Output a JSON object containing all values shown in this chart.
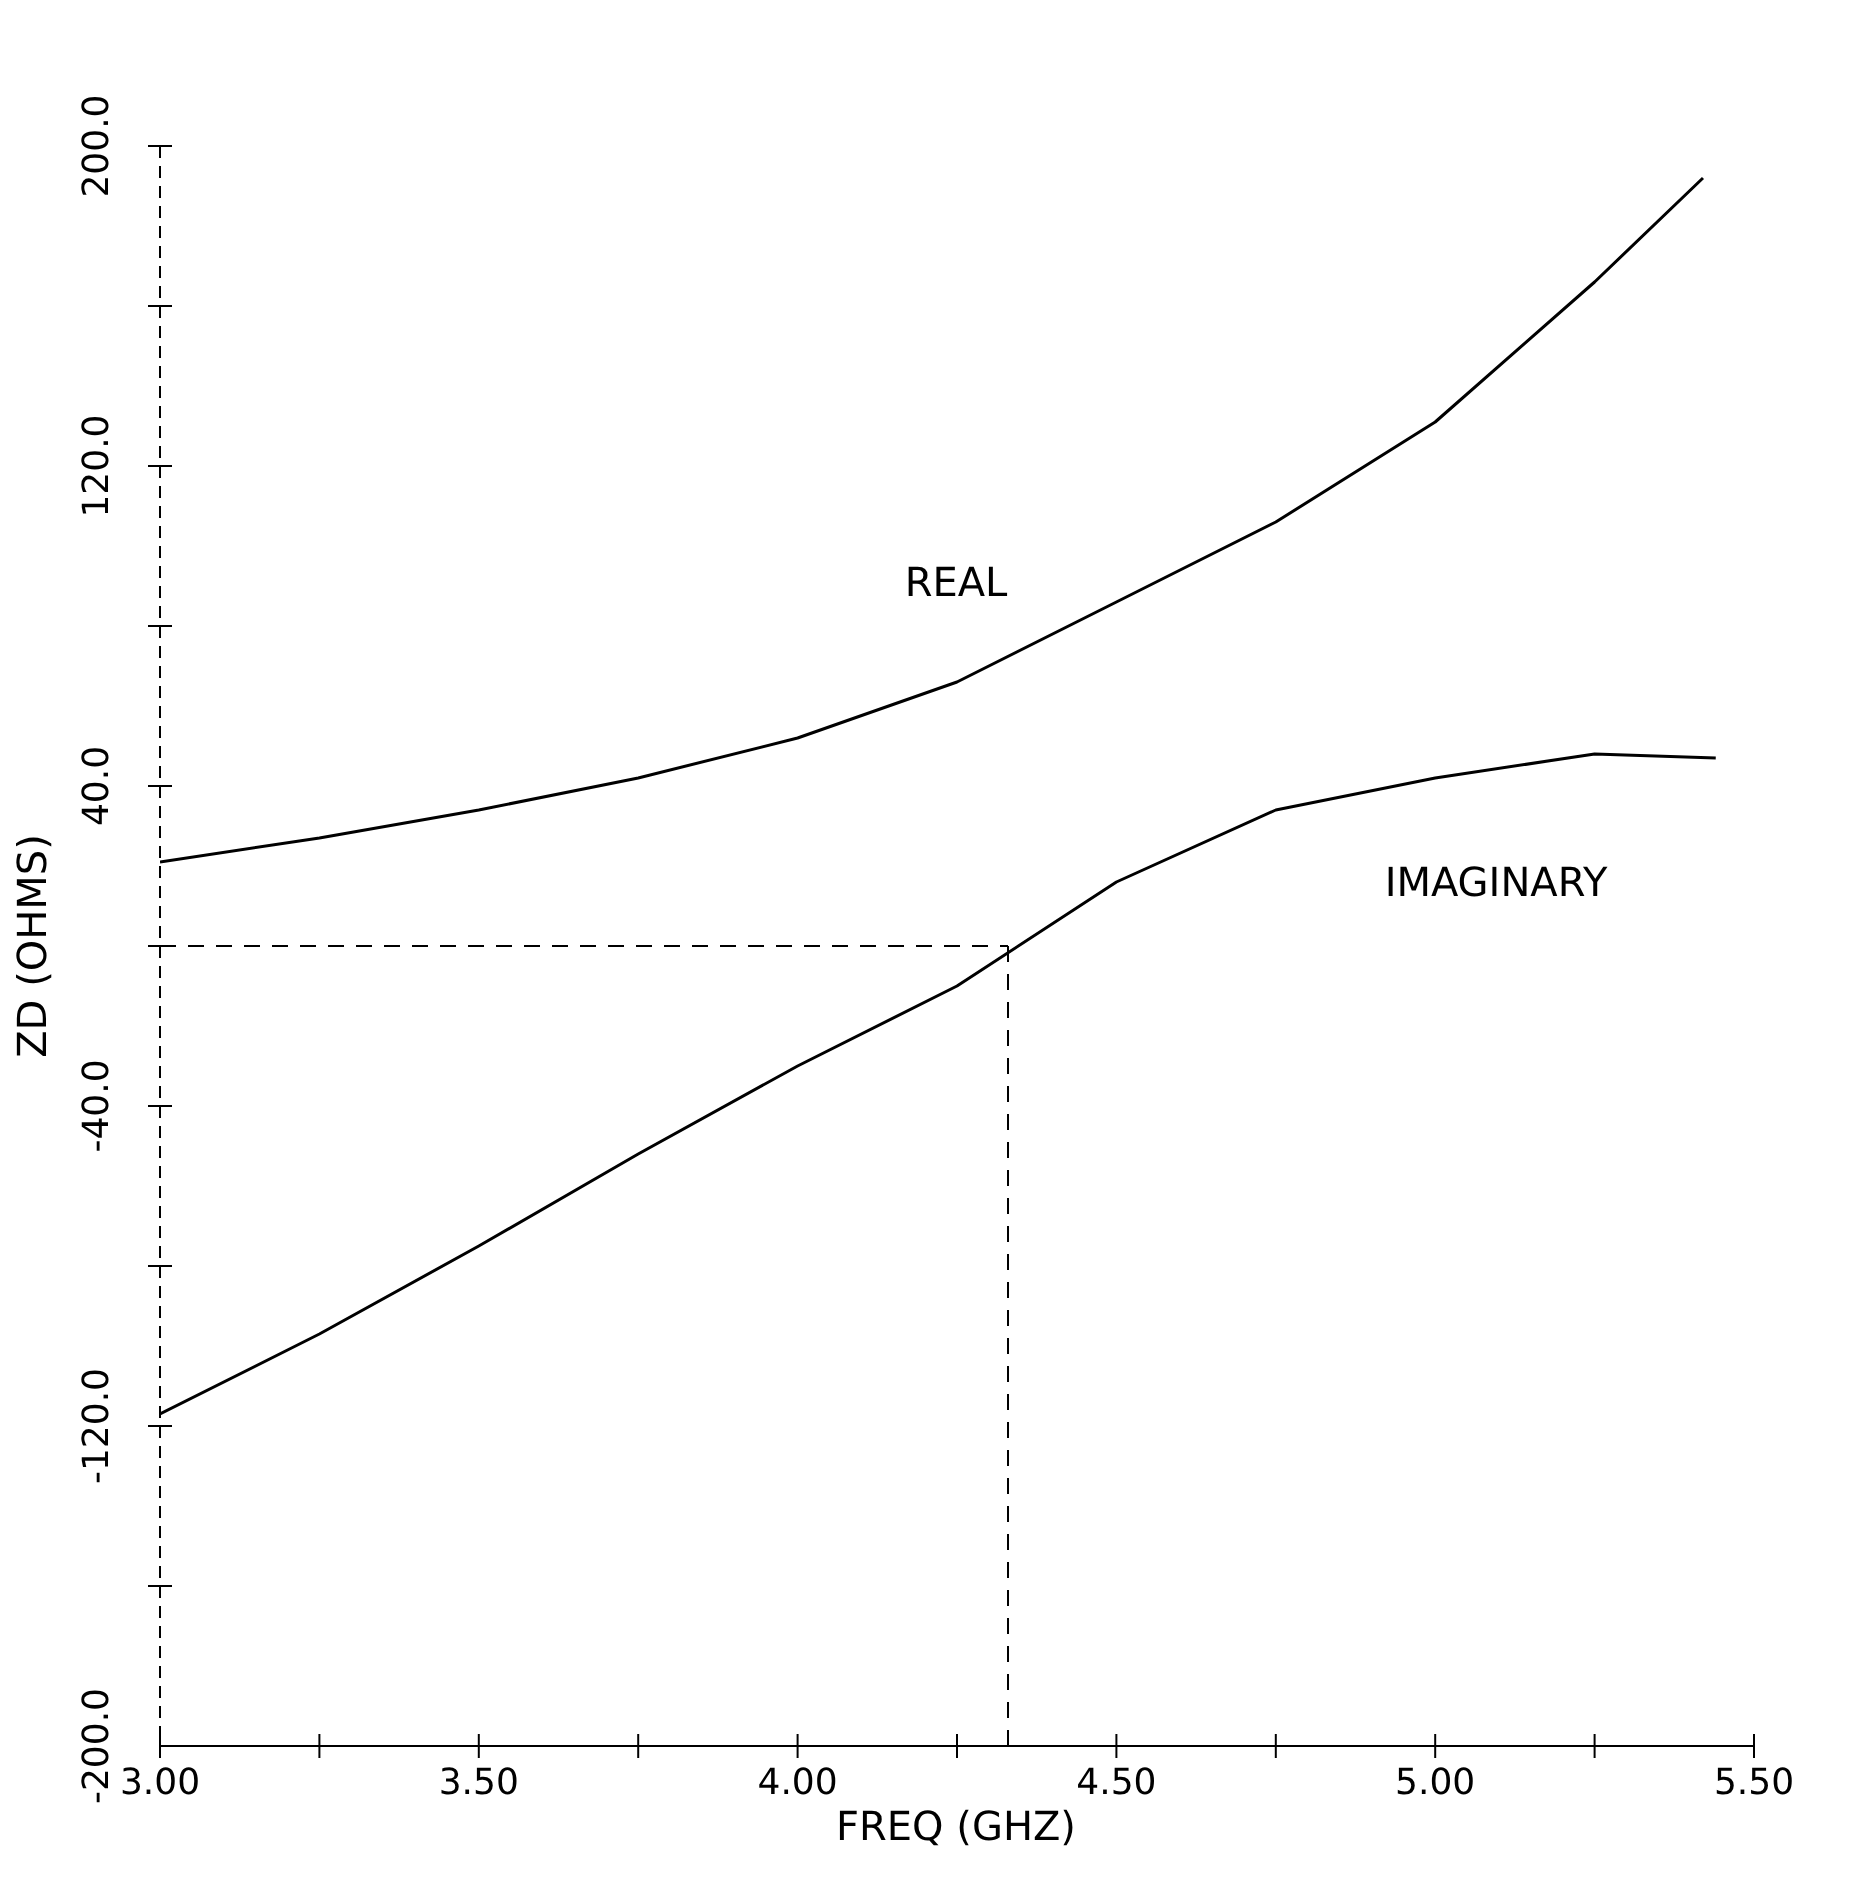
{
  "chart_data": {
    "type": "line",
    "xlabel": "FREQ (GHZ)",
    "ylabel": "ZD (OHMS)",
    "xlim": [
      3.0,
      5.5
    ],
    "xticks": [
      {
        "value": 3.0,
        "label": "3.00"
      },
      {
        "value": 3.25,
        "label": null
      },
      {
        "value": 3.5,
        "label": "3.50"
      },
      {
        "value": 3.75,
        "label": null
      },
      {
        "value": 4.0,
        "label": "4.00"
      },
      {
        "value": 4.25,
        "label": null
      },
      {
        "value": 4.5,
        "label": "4.50"
      },
      {
        "value": 4.75,
        "label": null
      },
      {
        "value": 5.0,
        "label": "5.00"
      },
      {
        "value": 5.25,
        "label": null
      },
      {
        "value": 5.5,
        "label": "5.50"
      }
    ],
    "ylim": [
      -200,
      200
    ],
    "yticks": [
      {
        "value": -200,
        "label": "-200.0"
      },
      {
        "value": -160,
        "label": null
      },
      {
        "value": -120,
        "label": "-120.0"
      },
      {
        "value": -80,
        "label": null
      },
      {
        "value": -40,
        "label": "-40.0"
      },
      {
        "value": 0,
        "label": null
      },
      {
        "value": 40,
        "label": "40.0"
      },
      {
        "value": 80,
        "label": null
      },
      {
        "value": 120,
        "label": "120.0"
      },
      {
        "value": 160,
        "label": null
      },
      {
        "value": 200,
        "label": "200.0"
      }
    ],
    "marker": "none",
    "line_style": "solid",
    "series": [
      {
        "name": "REAL",
        "color": "#000000",
        "x": [
          3.0,
          3.25,
          3.5,
          3.75,
          4.0,
          4.25,
          4.5,
          4.75,
          5.0,
          5.25,
          5.42
        ],
        "values": [
          21,
          27,
          34,
          42,
          52,
          66,
          86,
          106,
          131,
          166,
          192
        ]
      },
      {
        "name": "IMAGINARY",
        "color": "#000000",
        "x": [
          3.0,
          3.25,
          3.5,
          3.75,
          4.0,
          4.25,
          4.5,
          4.75,
          5.0,
          5.25,
          5.44
        ],
        "values": [
          -117,
          -97,
          -75,
          -52,
          -30,
          -10,
          16,
          34,
          42,
          48,
          47
        ]
      }
    ],
    "ref_lines": [
      {
        "axis": "y",
        "value": 0,
        "color": "#000000",
        "line_style": "dashed"
      },
      {
        "axis": "x",
        "value": 4.33,
        "color": "#000000",
        "line_style": "dashed"
      }
    ]
  }
}
